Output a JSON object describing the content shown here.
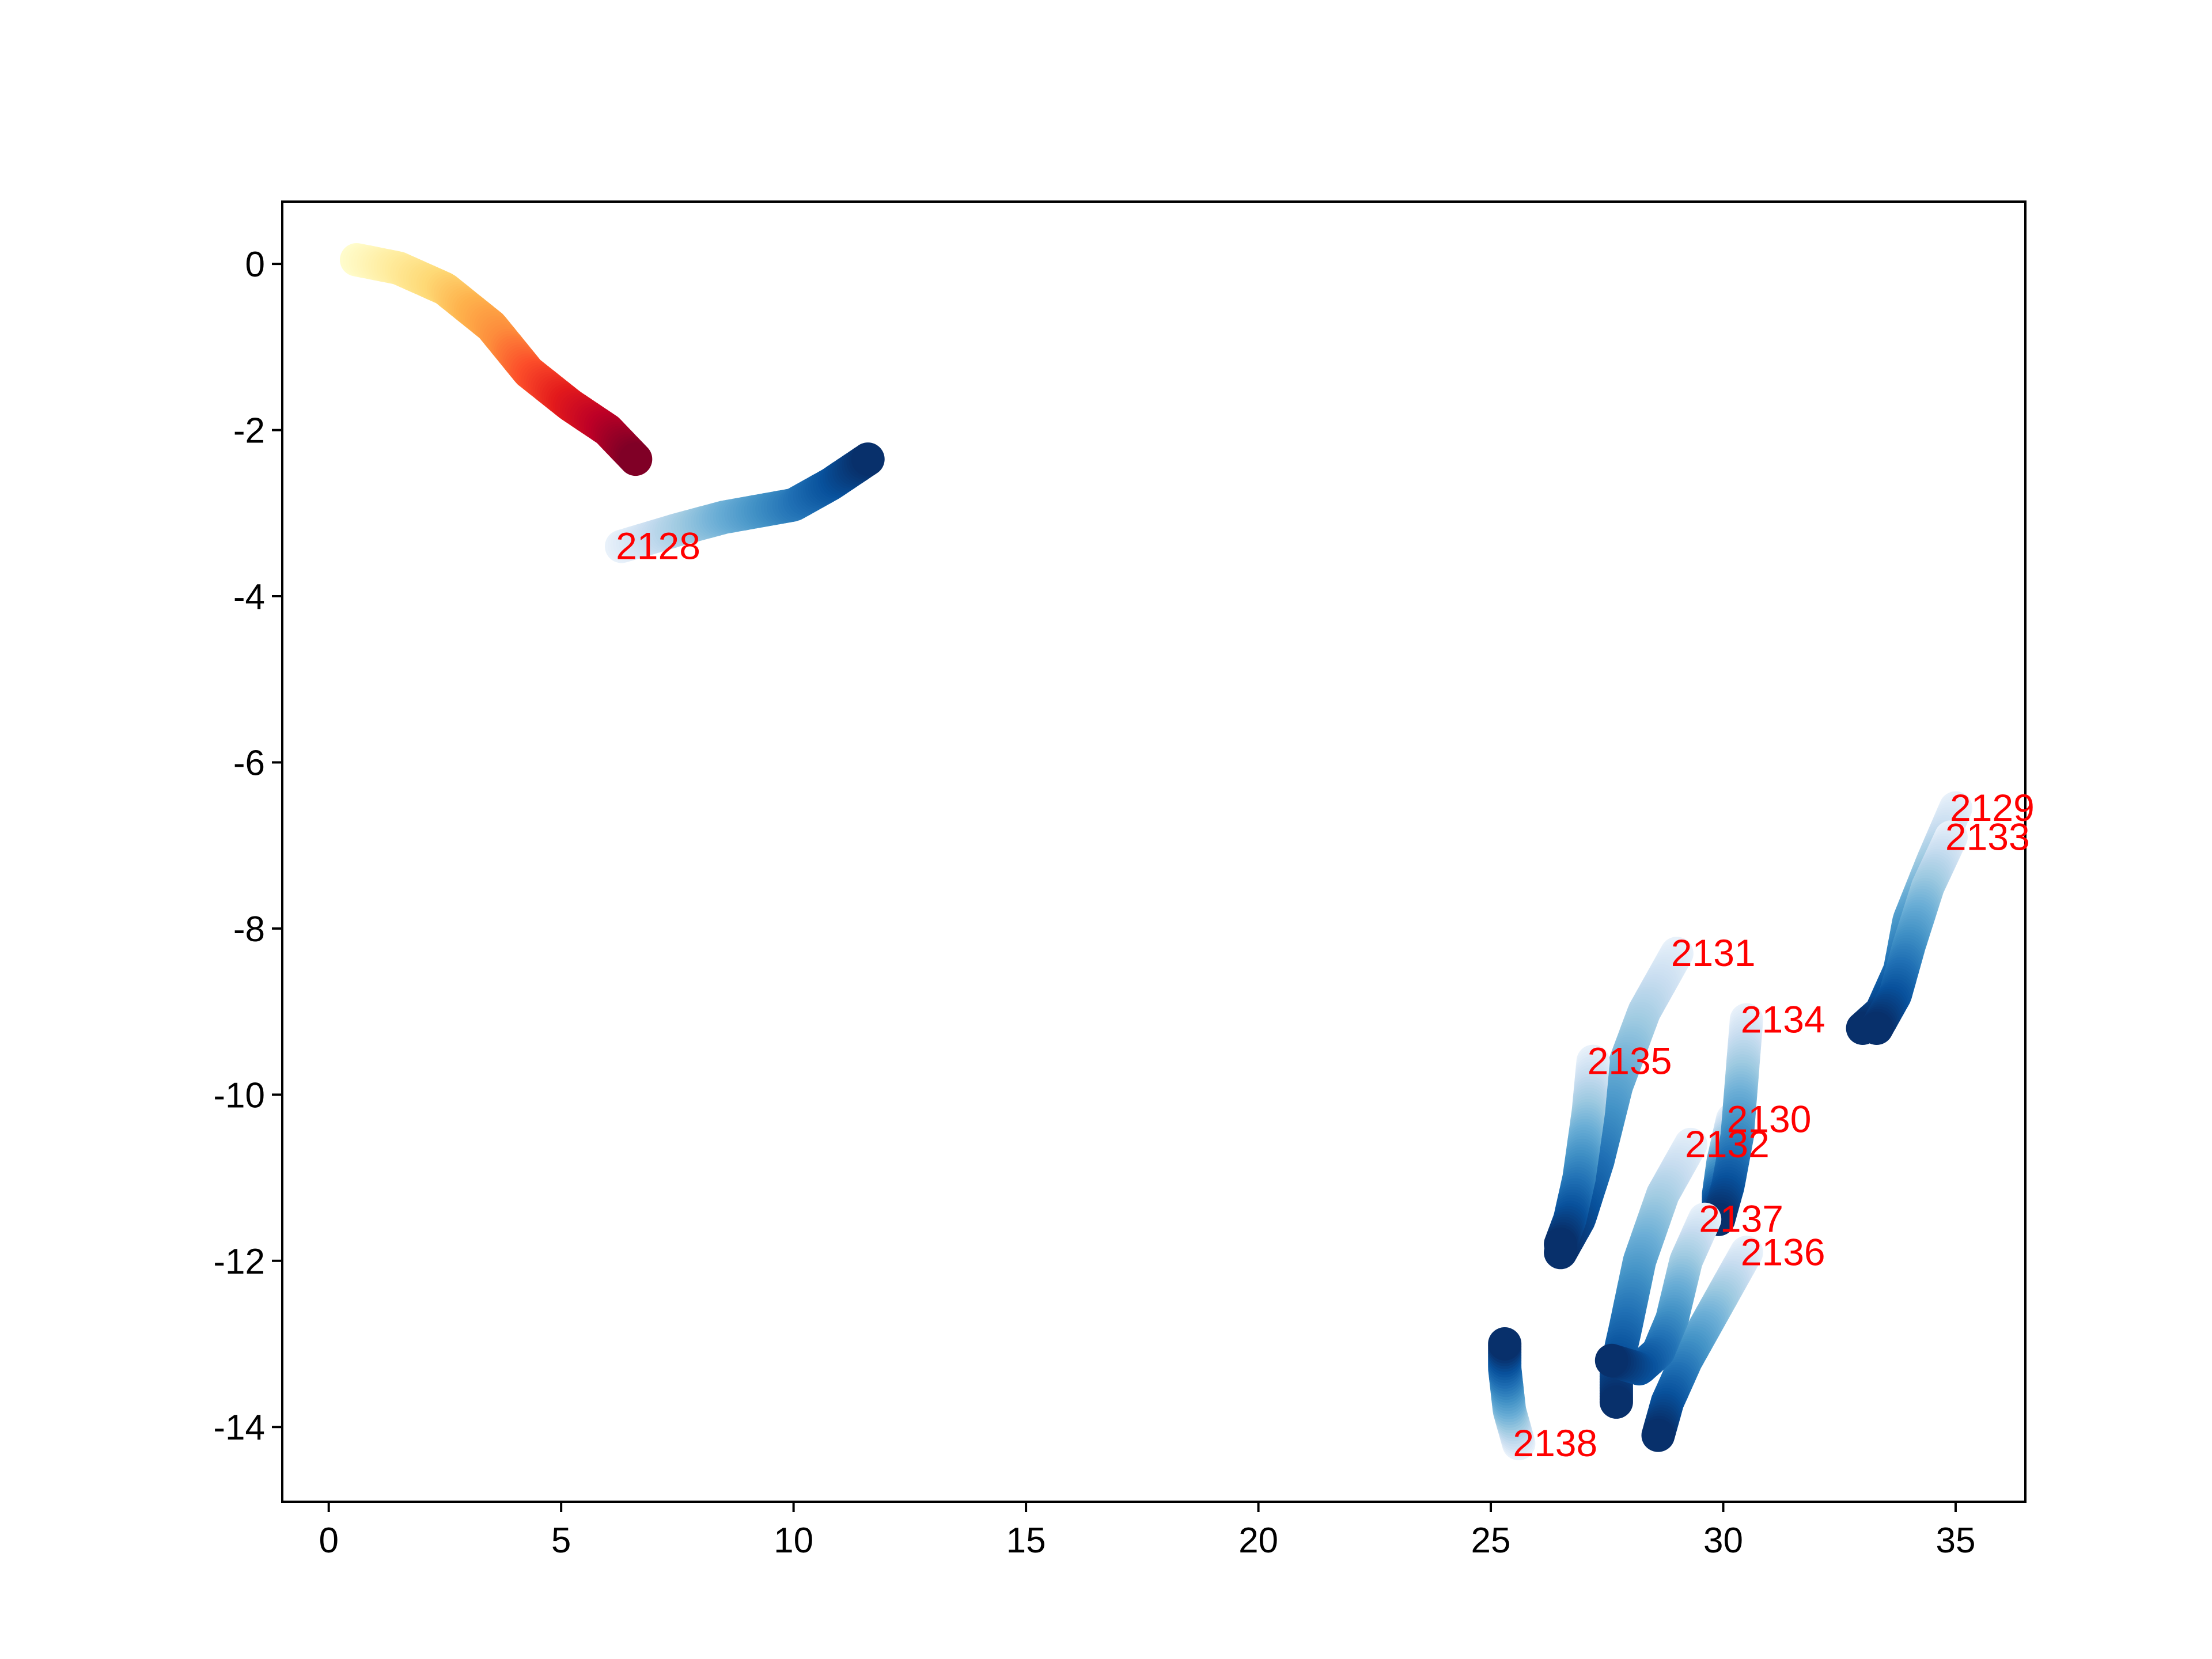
{
  "chart_data": {
    "type": "scatter",
    "title": "",
    "xlabel": "",
    "ylabel": "",
    "xlim": [
      -1.0,
      36.5
    ],
    "ylim": [
      -14.9,
      0.75
    ],
    "xticks": [
      0,
      5,
      10,
      15,
      20,
      25,
      30,
      35
    ],
    "yticks": [
      0,
      -2,
      -4,
      -6,
      -8,
      -10,
      -12,
      -14
    ],
    "xtick_labels": [
      "0",
      "5",
      "10",
      "15",
      "20",
      "25",
      "30",
      "35"
    ],
    "ytick_labels": [
      "0",
      "-2",
      "-4",
      "-6",
      "-8",
      "-10",
      "-12",
      "-14"
    ],
    "grid": false,
    "label_color": "#ff0000",
    "series": [
      {
        "colormap": "YlOrRd",
        "label": "",
        "points": [
          [
            0.6,
            0.05
          ],
          [
            1.5,
            -0.05
          ],
          [
            2.5,
            -0.3
          ],
          [
            3.5,
            -0.75
          ],
          [
            4.3,
            -1.3
          ],
          [
            5.2,
            -1.7
          ],
          [
            6.0,
            -2.0
          ],
          [
            6.6,
            -2.35
          ]
        ]
      },
      {
        "colormap": "Blues",
        "label": "2128",
        "points": [
          [
            6.3,
            -3.4
          ],
          [
            7.5,
            -3.2
          ],
          [
            8.5,
            -3.05
          ],
          [
            10.0,
            -2.9
          ],
          [
            10.8,
            -2.65
          ],
          [
            11.6,
            -2.35
          ]
        ]
      },
      {
        "colormap": "Blues",
        "label": "2129",
        "points": [
          [
            35.0,
            -6.55
          ],
          [
            34.5,
            -7.2
          ],
          [
            34.0,
            -7.9
          ],
          [
            33.8,
            -8.5
          ],
          [
            33.4,
            -9.0
          ],
          [
            33.0,
            -9.2
          ]
        ]
      },
      {
        "colormap": "Blues",
        "label": "2130",
        "points": [
          [
            30.2,
            -10.3
          ],
          [
            30.0,
            -10.8
          ],
          [
            29.9,
            -11.2
          ],
          [
            29.9,
            -11.5
          ]
        ]
      },
      {
        "colormap": "Blues",
        "label": "2131",
        "points": [
          [
            29.0,
            -8.3
          ],
          [
            28.3,
            -9.0
          ],
          [
            27.7,
            -9.9
          ],
          [
            27.3,
            -10.8
          ],
          [
            26.9,
            -11.5
          ],
          [
            26.5,
            -11.9
          ]
        ]
      },
      {
        "colormap": "Blues",
        "label": "2132",
        "points": [
          [
            29.3,
            -10.6
          ],
          [
            28.7,
            -11.2
          ],
          [
            28.2,
            -12.0
          ],
          [
            27.9,
            -12.8
          ],
          [
            27.7,
            -13.3
          ],
          [
            27.7,
            -13.7
          ]
        ]
      },
      {
        "colormap": "Blues",
        "label": "2133",
        "points": [
          [
            34.9,
            -6.9
          ],
          [
            34.4,
            -7.5
          ],
          [
            34.0,
            -8.2
          ],
          [
            33.7,
            -8.8
          ],
          [
            33.3,
            -9.2
          ]
        ]
      },
      {
        "colormap": "Blues",
        "label": "2134",
        "points": [
          [
            30.5,
            -9.1
          ],
          [
            30.4,
            -9.8
          ],
          [
            30.3,
            -10.5
          ],
          [
            30.1,
            -11.1
          ],
          [
            29.9,
            -11.5
          ]
        ]
      },
      {
        "colormap": "Blues",
        "label": "2135",
        "points": [
          [
            27.2,
            -9.6
          ],
          [
            27.1,
            -10.2
          ],
          [
            26.9,
            -11.0
          ],
          [
            26.7,
            -11.5
          ],
          [
            26.5,
            -11.8
          ]
        ]
      },
      {
        "colormap": "Blues",
        "label": "2136",
        "points": [
          [
            30.5,
            -11.9
          ],
          [
            29.8,
            -12.6
          ],
          [
            29.2,
            -13.2
          ],
          [
            28.8,
            -13.7
          ],
          [
            28.6,
            -14.1
          ]
        ]
      },
      {
        "colormap": "Blues",
        "label": "2137",
        "points": [
          [
            29.6,
            -11.5
          ],
          [
            29.2,
            -12.0
          ],
          [
            28.9,
            -12.7
          ],
          [
            28.6,
            -13.1
          ],
          [
            28.2,
            -13.3
          ],
          [
            27.6,
            -13.2
          ]
        ]
      },
      {
        "colormap": "Blues",
        "label": "2138",
        "points": [
          [
            25.6,
            -14.2
          ],
          [
            25.4,
            -13.8
          ],
          [
            25.3,
            -13.3
          ],
          [
            25.3,
            -13.0
          ]
        ]
      }
    ]
  }
}
